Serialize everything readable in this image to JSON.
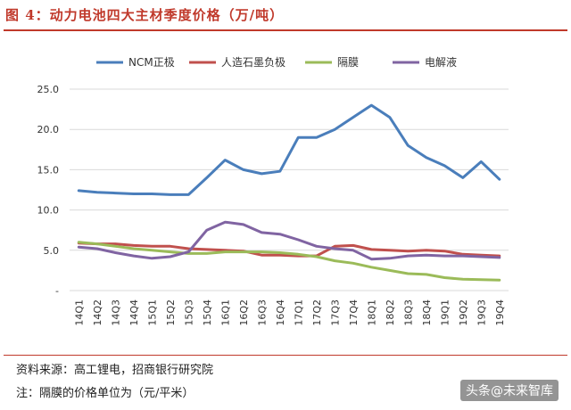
{
  "figure": {
    "title": "图 4：动力电池四大主材季度价格（万/吨）",
    "source": "资料来源：高工锂电，招商银行研究院",
    "note": "注：隔膜的价格单位为（元/平米）",
    "watermark": "头条@未来智库"
  },
  "chart_data": {
    "type": "line",
    "title": "",
    "xlabel": "",
    "ylabel": "",
    "ylim": [
      0,
      25
    ],
    "yticks": [
      {
        "value": 0,
        "label": "-"
      },
      {
        "value": 5,
        "label": "5.0"
      },
      {
        "value": 10,
        "label": "10.0"
      },
      {
        "value": 15,
        "label": "15.0"
      },
      {
        "value": 20,
        "label": "20.0"
      },
      {
        "value": 25,
        "label": "25.0"
      }
    ],
    "grid": true,
    "legend": "top",
    "categories": [
      "14Q1",
      "14Q2",
      "14Q3",
      "14Q4",
      "15Q1",
      "15Q2",
      "15Q3",
      "15Q4",
      "16Q1",
      "16Q2",
      "16Q3",
      "16Q4",
      "17Q1",
      "17Q2",
      "17Q3",
      "17Q4",
      "18Q1",
      "18Q2",
      "18Q3",
      "18Q4",
      "19Q1",
      "19Q2",
      "19Q3",
      "19Q4"
    ],
    "series": [
      {
        "name": "NCM正极",
        "color": "#4a7ebb",
        "values": [
          12.4,
          12.2,
          12.1,
          12.0,
          12.0,
          11.9,
          11.9,
          14.0,
          16.2,
          15.0,
          14.5,
          14.8,
          19.0,
          19.0,
          20.0,
          21.5,
          23.0,
          21.5,
          18.0,
          16.5,
          15.5,
          14.0,
          16.0,
          13.8
        ]
      },
      {
        "name": "人造石墨负极",
        "color": "#c0504d",
        "values": [
          5.9,
          5.8,
          5.8,
          5.6,
          5.5,
          5.5,
          5.2,
          5.1,
          5.0,
          4.9,
          4.4,
          4.4,
          4.3,
          4.3,
          5.5,
          5.6,
          5.1,
          5.0,
          4.9,
          5.0,
          4.9,
          4.5,
          4.4,
          4.3
        ]
      },
      {
        "name": "隔膜",
        "color": "#9bbb59",
        "values": [
          6.0,
          5.8,
          5.5,
          5.2,
          5.0,
          4.8,
          4.6,
          4.6,
          4.8,
          4.8,
          4.8,
          4.7,
          4.5,
          4.2,
          3.7,
          3.4,
          2.9,
          2.5,
          2.1,
          2.0,
          1.6,
          1.4,
          1.35,
          1.3
        ]
      },
      {
        "name": "电解液",
        "color": "#8064a2",
        "values": [
          5.4,
          5.2,
          4.7,
          4.3,
          4.0,
          4.2,
          4.8,
          7.5,
          8.5,
          8.2,
          7.2,
          7.0,
          6.3,
          5.5,
          5.2,
          5.0,
          3.9,
          4.0,
          4.3,
          4.4,
          4.3,
          4.3,
          4.2,
          4.1
        ]
      }
    ]
  }
}
